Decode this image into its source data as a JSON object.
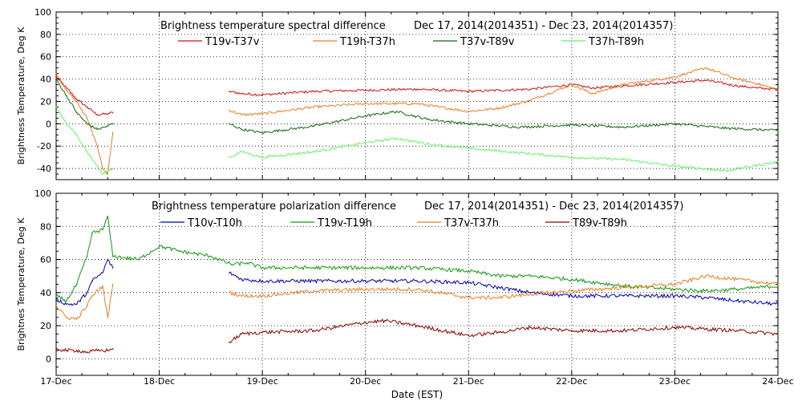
{
  "colors": {
    "axis": "#000000",
    "grid": "#000000",
    "red": "#cc1111",
    "orange": "#e67e22",
    "darkgreen": "#116611",
    "lightgreen": "#66ee66",
    "blue": "#0000aa",
    "green": "#119911",
    "maroon": "#8b0000"
  },
  "xlabel": "Date (EST)",
  "x_categories": [
    "17-Dec",
    "18-Dec",
    "19-Dec",
    "20-Dec",
    "21-Dec",
    "22-Dec",
    "23-Dec",
    "24-Dec"
  ],
  "chart_data": [
    {
      "type": "line",
      "title": "Brightness temperature spectral difference",
      "date_range": "Dec 17, 2014(2014351) - Dec 23, 2014(2014357)",
      "ylabel": "Brightness Temperature, Deg K",
      "xlim": [
        0,
        7
      ],
      "ylim": [
        -50,
        100
      ],
      "yticks": [
        -40,
        -20,
        0,
        20,
        40,
        60,
        80,
        100
      ],
      "series": [
        {
          "name": "T19v-T37v",
          "color": "red",
          "x": [
            0,
            0.1,
            0.2,
            0.3,
            0.4,
            0.5,
            0.55,
            1.68,
            1.8,
            2.0,
            2.5,
            3.0,
            3.5,
            4.0,
            4.3,
            4.6,
            5.0,
            5.2,
            5.5,
            6.0,
            6.3,
            6.6,
            6.8,
            7.0
          ],
          "values": [
            42,
            32,
            22,
            15,
            8,
            9,
            10,
            29,
            27,
            26,
            29,
            30,
            31,
            29,
            30,
            31,
            35,
            32,
            34,
            37,
            39,
            34,
            32,
            31
          ]
        },
        {
          "name": "T19h-T37h",
          "color": "orange",
          "x": [
            0,
            0.1,
            0.2,
            0.3,
            0.4,
            0.45,
            0.5,
            0.55,
            1.68,
            1.8,
            2.0,
            2.5,
            3.0,
            3.5,
            4.0,
            4.3,
            4.6,
            5.0,
            5.2,
            5.5,
            6.0,
            6.3,
            6.6,
            6.8,
            7.0
          ],
          "values": [
            45,
            30,
            20,
            5,
            -20,
            -40,
            -45,
            -8,
            12,
            8,
            9,
            15,
            18,
            18,
            11,
            14,
            21,
            35,
            27,
            35,
            42,
            50,
            40,
            36,
            30
          ]
        },
        {
          "name": "T37v-T89v",
          "color": "darkgreen",
          "x": [
            0,
            0.1,
            0.2,
            0.3,
            0.4,
            0.5,
            0.55,
            1.68,
            1.8,
            2.0,
            2.5,
            3.0,
            3.3,
            3.6,
            4.0,
            4.5,
            5.0,
            5.5,
            6.0,
            6.5,
            7.0
          ],
          "values": [
            40,
            25,
            10,
            0,
            -5,
            -2,
            0,
            0,
            -5,
            -8,
            -2,
            7,
            11,
            4,
            0,
            -3,
            -1,
            -3,
            0,
            -4,
            -6
          ]
        },
        {
          "name": "T37h-T89h",
          "color": "lightgreen",
          "x": [
            0,
            0.1,
            0.2,
            0.3,
            0.4,
            0.45,
            0.55,
            1.68,
            1.8,
            2.0,
            2.5,
            3.0,
            3.3,
            3.6,
            4.0,
            4.5,
            5.0,
            5.5,
            6.0,
            6.5,
            7.0
          ],
          "values": [
            15,
            0,
            -10,
            -25,
            -38,
            -45,
            -40,
            -30,
            -25,
            -30,
            -25,
            -17,
            -13,
            -18,
            -22,
            -26,
            -30,
            -32,
            -38,
            -42,
            -34
          ]
        }
      ]
    },
    {
      "type": "line",
      "title": "Brightness temperature polarization difference",
      "date_range": "Dec 17, 2014(2014351) - Dec 23, 2014(2014357)",
      "ylabel": "Brightnes Temperature, Deg K",
      "xlim": [
        0,
        7
      ],
      "ylim": [
        -10,
        100
      ],
      "yticks": [
        0,
        20,
        40,
        60,
        80,
        100
      ],
      "series": [
        {
          "name": "T10v-T10h",
          "color": "blue",
          "x": [
            0,
            0.1,
            0.2,
            0.3,
            0.35,
            0.45,
            0.5,
            0.55,
            1.68,
            1.8,
            2.0,
            2.5,
            3.0,
            3.5,
            4.0,
            4.3,
            4.6,
            5.0,
            5.5,
            6.0,
            6.3,
            6.6,
            7.0
          ],
          "values": [
            36,
            33,
            33,
            40,
            47,
            52,
            60,
            55,
            52,
            48,
            47,
            47,
            47,
            47,
            46,
            43,
            40,
            38,
            38,
            38,
            37,
            35,
            33
          ]
        },
        {
          "name": "T19v-T19h",
          "color": "green",
          "x": [
            0,
            0.1,
            0.2,
            0.3,
            0.35,
            0.45,
            0.5,
            0.55,
            0.8,
            1.0,
            1.2,
            1.5,
            1.7,
            1.85,
            2.0,
            2.5,
            3.0,
            3.5,
            4.0,
            4.3,
            4.6,
            5.0,
            5.5,
            6.0,
            6.3,
            6.6,
            7.0
          ],
          "values": [
            38,
            35,
            45,
            62,
            76,
            78,
            86,
            62,
            60,
            68,
            65,
            62,
            57,
            58,
            55,
            55,
            55,
            55,
            53,
            50,
            50,
            48,
            44,
            42,
            41,
            42,
            44
          ]
        },
        {
          "name": "T37v-T37h",
          "color": "orange",
          "x": [
            0,
            0.1,
            0.2,
            0.3,
            0.35,
            0.45,
            0.5,
            0.55,
            1.68,
            1.8,
            2.0,
            2.5,
            3.0,
            3.5,
            4.0,
            4.3,
            4.6,
            5.0,
            5.5,
            6.0,
            6.3,
            6.6,
            7.0
          ],
          "values": [
            32,
            25,
            24,
            32,
            38,
            44,
            25,
            45,
            40,
            38,
            38,
            41,
            42,
            42,
            37,
            37,
            39,
            41,
            43,
            45,
            50,
            48,
            45
          ]
        },
        {
          "name": "T89v-T89h",
          "color": "maroon",
          "x": [
            0,
            0.1,
            0.2,
            0.3,
            0.4,
            0.5,
            0.55,
            1.68,
            1.8,
            2.0,
            2.5,
            3.0,
            3.2,
            3.5,
            4.0,
            4.3,
            4.6,
            5.0,
            5.5,
            6.0,
            6.3,
            6.6,
            7.0
          ],
          "values": [
            6,
            5,
            5,
            4,
            5,
            5,
            6,
            10,
            15,
            16,
            17,
            22,
            23,
            20,
            14,
            16,
            19,
            17,
            17,
            19,
            18,
            17,
            15
          ]
        }
      ]
    }
  ]
}
